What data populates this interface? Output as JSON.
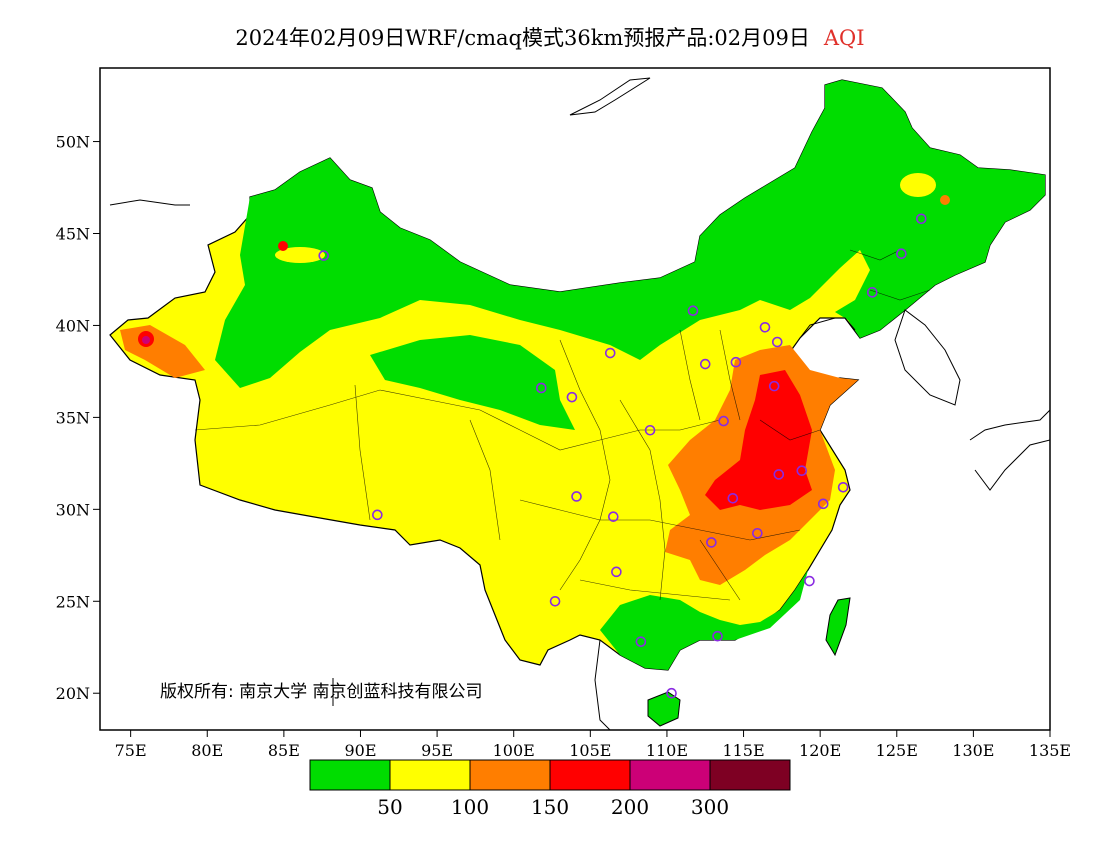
{
  "title": {
    "main": "2024年02月09日WRF/cmaq模式36km预报产品:02月09日",
    "variable": "AQI"
  },
  "map": {
    "lon_range": [
      73,
      135
    ],
    "lat_range": [
      18,
      54
    ],
    "lon_ticks": [
      "75E",
      "80E",
      "85E",
      "90E",
      "95E",
      "100E",
      "105E",
      "110E",
      "115E",
      "120E",
      "125E",
      "130E",
      "135E"
    ],
    "lat_ticks": [
      "50N",
      "45N",
      "40N",
      "35N",
      "30N",
      "25N",
      "20N"
    ],
    "copyright": "版权所有: 南京大学  南京创蓝科技有限公司",
    "station_marker_color": "#8a2be2",
    "stations": [
      [
        87.6,
        43.8
      ],
      [
        91.1,
        29.7
      ],
      [
        101.8,
        36.6
      ],
      [
        103.8,
        36.1
      ],
      [
        106.3,
        38.5
      ],
      [
        104.1,
        30.7
      ],
      [
        106.5,
        29.6
      ],
      [
        106.7,
        26.6
      ],
      [
        102.7,
        25.0
      ],
      [
        108.9,
        34.3
      ],
      [
        111.7,
        40.8
      ],
      [
        112.5,
        37.9
      ],
      [
        114.5,
        38.0
      ],
      [
        116.4,
        39.9
      ],
      [
        117.2,
        39.1
      ],
      [
        117.0,
        36.7
      ],
      [
        113.7,
        34.8
      ],
      [
        114.3,
        30.6
      ],
      [
        112.9,
        28.2
      ],
      [
        115.9,
        28.7
      ],
      [
        117.3,
        31.9
      ],
      [
        118.8,
        32.1
      ],
      [
        120.2,
        30.3
      ],
      [
        121.5,
        31.2
      ],
      [
        119.3,
        26.1
      ],
      [
        113.3,
        23.1
      ],
      [
        108.3,
        22.8
      ],
      [
        110.3,
        20.0
      ],
      [
        123.4,
        41.8
      ],
      [
        125.3,
        43.9
      ],
      [
        126.6,
        45.8
      ]
    ]
  },
  "legend": {
    "colors": [
      "#00dd00",
      "#ffff00",
      "#ff7e00",
      "#ff0000",
      "#cc0077",
      "#7e0023"
    ],
    "labels": [
      "50",
      "100",
      "150",
      "200",
      "300"
    ]
  }
}
